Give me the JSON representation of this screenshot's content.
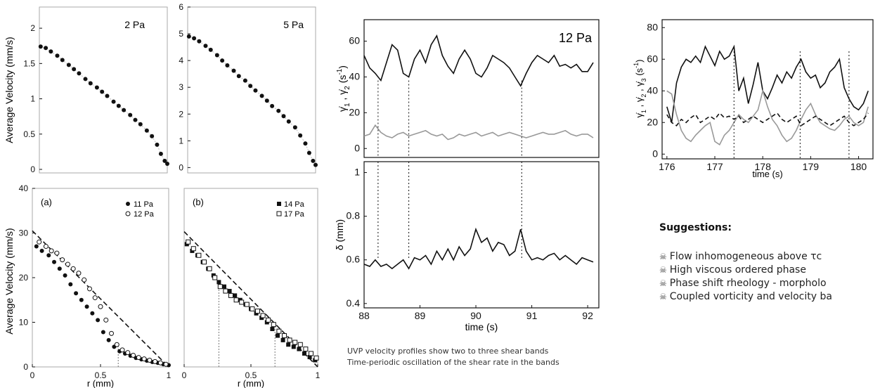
{
  "panels": {
    "p2": {
      "label": "2 Pa"
    },
    "p5": {
      "label": "5 Pa"
    },
    "pa": {
      "label": "(a)",
      "legend": [
        "11 Pa",
        "12 Pa"
      ]
    },
    "pb": {
      "label": "(b)",
      "legend": [
        "14 Pa",
        "17 Pa"
      ]
    },
    "p12": {
      "label": "12 Pa"
    }
  },
  "axes": {
    "avg_velocity_top": "Average Velocity (mm/s)",
    "avg_velocity_bottom": "Average Velocity (mm/s)",
    "r_a": "r (mm)",
    "r_b": "r (mm)",
    "delta": "δ (mm)",
    "time_mid": "time (s)",
    "time_right": "time (s)"
  },
  "caption": {
    "line1": "UVP velocity profiles show two to three shear bands",
    "line2": "Time-periodic oscillation of the shear rate in the bands"
  },
  "suggestions": {
    "title": "Suggestions:",
    "items": [
      "Flow inhomogeneous above τc",
      "High viscous ordered phase",
      "Phase shift rheology - morpholo",
      "Coupled vorticity and velocity ba"
    ],
    "icon": "skull-icon"
  },
  "chart_data": [
    {
      "type": "scatter",
      "label": "2 Pa",
      "ylabel": "Average Velocity (mm/s)",
      "ylim": [
        -0.05,
        2.3
      ],
      "yticks": [
        0,
        0.5,
        1,
        1.5,
        2
      ],
      "points": [
        [
          0.01,
          1.74
        ],
        [
          0.05,
          1.72
        ],
        [
          0.09,
          1.67
        ],
        [
          0.14,
          1.61
        ],
        [
          0.18,
          1.55
        ],
        [
          0.23,
          1.48
        ],
        [
          0.27,
          1.42
        ],
        [
          0.31,
          1.36
        ],
        [
          0.36,
          1.28
        ],
        [
          0.4,
          1.22
        ],
        [
          0.45,
          1.16
        ],
        [
          0.49,
          1.1
        ],
        [
          0.53,
          1.04
        ],
        [
          0.58,
          0.96
        ],
        [
          0.62,
          0.9
        ],
        [
          0.66,
          0.84
        ],
        [
          0.71,
          0.77
        ],
        [
          0.75,
          0.7
        ],
        [
          0.79,
          0.64
        ],
        [
          0.84,
          0.55
        ],
        [
          0.88,
          0.47
        ],
        [
          0.92,
          0.35
        ],
        [
          0.95,
          0.22
        ],
        [
          0.98,
          0.12
        ],
        [
          1.0,
          0.08
        ]
      ]
    },
    {
      "type": "scatter",
      "label": "5 Pa",
      "ylim": [
        -0.2,
        6
      ],
      "yticks": [
        0,
        1,
        2,
        3,
        4,
        5,
        6
      ],
      "points": [
        [
          0.01,
          4.9
        ],
        [
          0.05,
          4.83
        ],
        [
          0.09,
          4.72
        ],
        [
          0.14,
          4.55
        ],
        [
          0.18,
          4.4
        ],
        [
          0.23,
          4.2
        ],
        [
          0.27,
          4.0
        ],
        [
          0.31,
          3.82
        ],
        [
          0.36,
          3.62
        ],
        [
          0.4,
          3.42
        ],
        [
          0.45,
          3.25
        ],
        [
          0.49,
          3.05
        ],
        [
          0.53,
          2.88
        ],
        [
          0.58,
          2.68
        ],
        [
          0.62,
          2.5
        ],
        [
          0.66,
          2.3
        ],
        [
          0.71,
          2.12
        ],
        [
          0.75,
          1.92
        ],
        [
          0.79,
          1.72
        ],
        [
          0.84,
          1.5
        ],
        [
          0.88,
          1.2
        ],
        [
          0.92,
          0.9
        ],
        [
          0.95,
          0.55
        ],
        [
          0.98,
          0.25
        ],
        [
          1.0,
          0.1
        ]
      ]
    },
    {
      "type": "scatter",
      "label": "(a)",
      "xlabel": "r (mm)",
      "ylabel": "Average Velocity (mm/s)",
      "xlim": [
        0,
        1
      ],
      "ylim": [
        0,
        40
      ],
      "yticks": [
        0,
        10,
        20,
        30,
        40
      ],
      "xticks": [
        0,
        0.5,
        1
      ],
      "reference_line": [
        [
          0,
          30.5
        ],
        [
          1,
          0
        ]
      ],
      "marker_line_x": 0.63,
      "series": [
        {
          "name": "11 Pa",
          "marker": "filled-circle",
          "points": [
            [
              0.03,
              27
            ],
            [
              0.07,
              26
            ],
            [
              0.12,
              25
            ],
            [
              0.16,
              23.5
            ],
            [
              0.2,
              22
            ],
            [
              0.24,
              20.5
            ],
            [
              0.28,
              18.5
            ],
            [
              0.32,
              16.5
            ],
            [
              0.36,
              15
            ],
            [
              0.4,
              13.5
            ],
            [
              0.44,
              12
            ],
            [
              0.48,
              10.5
            ],
            [
              0.52,
              7.8
            ],
            [
              0.56,
              6
            ],
            [
              0.6,
              4.5
            ],
            [
              0.64,
              3.5
            ],
            [
              0.68,
              3
            ],
            [
              0.72,
              2.5
            ],
            [
              0.76,
              2
            ],
            [
              0.8,
              1.7
            ],
            [
              0.84,
              1.4
            ],
            [
              0.88,
              1.1
            ],
            [
              0.92,
              0.9
            ],
            [
              0.96,
              0.6
            ],
            [
              1.0,
              0.4
            ]
          ]
        },
        {
          "name": "12 Pa",
          "marker": "open-circle",
          "points": [
            [
              0.05,
              28
            ],
            [
              0.1,
              27
            ],
            [
              0.14,
              26
            ],
            [
              0.18,
              25.5
            ],
            [
              0.22,
              24
            ],
            [
              0.26,
              23
            ],
            [
              0.3,
              22
            ],
            [
              0.34,
              21
            ],
            [
              0.38,
              19.5
            ],
            [
              0.42,
              17.5
            ],
            [
              0.46,
              15.5
            ],
            [
              0.5,
              13.5
            ],
            [
              0.54,
              10.5
            ],
            [
              0.58,
              7.5
            ],
            [
              0.62,
              5
            ],
            [
              0.66,
              3.8
            ],
            [
              0.7,
              3.2
            ],
            [
              0.74,
              2.6
            ],
            [
              0.78,
              2.1
            ],
            [
              0.82,
              1.8
            ],
            [
              0.86,
              1.5
            ],
            [
              0.9,
              1.2
            ],
            [
              0.94,
              0.9
            ],
            [
              0.98,
              0.6
            ]
          ]
        }
      ]
    },
    {
      "type": "scatter",
      "label": "(b)",
      "xlabel": "r (mm)",
      "xlim": [
        0,
        1
      ],
      "ylim": [
        0,
        40
      ],
      "xticks": [
        0,
        0.5,
        1
      ],
      "reference_line": [
        [
          0,
          30.3
        ],
        [
          1,
          0
        ]
      ],
      "marker_line_x": [
        0.26,
        0.68
      ],
      "series": [
        {
          "name": "14 Pa",
          "marker": "filled-square",
          "points": [
            [
              0.02,
              27.5
            ],
            [
              0.06,
              26
            ],
            [
              0.1,
              25
            ],
            [
              0.14,
              23.5
            ],
            [
              0.18,
              22
            ],
            [
              0.22,
              20.5
            ],
            [
              0.26,
              19
            ],
            [
              0.3,
              18
            ],
            [
              0.34,
              17
            ],
            [
              0.38,
              16
            ],
            [
              0.42,
              15
            ],
            [
              0.46,
              14
            ],
            [
              0.5,
              13
            ],
            [
              0.54,
              12
            ],
            [
              0.58,
              11
            ],
            [
              0.62,
              10
            ],
            [
              0.66,
              8.5
            ],
            [
              0.7,
              7
            ],
            [
              0.74,
              6
            ],
            [
              0.78,
              5
            ],
            [
              0.82,
              4.5
            ],
            [
              0.86,
              4
            ],
            [
              0.9,
              3
            ],
            [
              0.94,
              2.2
            ],
            [
              0.98,
              1.5
            ]
          ]
        },
        {
          "name": "17 Pa",
          "marker": "open-square",
          "points": [
            [
              0.03,
              28
            ],
            [
              0.07,
              26.5
            ],
            [
              0.11,
              25
            ],
            [
              0.15,
              23.5
            ],
            [
              0.19,
              22
            ],
            [
              0.23,
              20
            ],
            [
              0.27,
              18
            ],
            [
              0.31,
              17
            ],
            [
              0.35,
              16
            ],
            [
              0.39,
              15
            ],
            [
              0.43,
              14.5
            ],
            [
              0.47,
              14
            ],
            [
              0.51,
              13
            ],
            [
              0.55,
              12.5
            ],
            [
              0.59,
              11.5
            ],
            [
              0.63,
              10.5
            ],
            [
              0.67,
              9.5
            ],
            [
              0.71,
              8
            ],
            [
              0.75,
              7
            ],
            [
              0.79,
              6
            ],
            [
              0.83,
              5.5
            ],
            [
              0.87,
              5
            ],
            [
              0.91,
              4
            ],
            [
              0.95,
              3
            ],
            [
              0.99,
              2
            ]
          ]
        }
      ]
    },
    {
      "type": "line",
      "label": "12 Pa",
      "xlim": [
        88,
        92.2
      ],
      "ylim": [
        -5,
        72
      ],
      "yticks": [
        0,
        20,
        40,
        60
      ],
      "x": [
        88,
        88.1,
        88.2,
        88.3,
        88.4,
        88.5,
        88.6,
        88.7,
        88.8,
        88.9,
        89,
        89.1,
        89.2,
        89.3,
        89.4,
        89.5,
        89.6,
        89.7,
        89.8,
        89.9,
        90,
        90.1,
        90.2,
        90.3,
        90.4,
        90.5,
        90.6,
        90.7,
        90.8,
        90.9,
        91,
        91.1,
        91.2,
        91.3,
        91.4,
        91.5,
        91.6,
        91.7,
        91.8,
        91.9,
        92,
        92.1
      ],
      "series": [
        {
          "name": "",
          "color": "#111111",
          "values": [
            52,
            45,
            42,
            38,
            48,
            58,
            55,
            42,
            40,
            50,
            55,
            48,
            58,
            63,
            52,
            46,
            42,
            50,
            55,
            50,
            42,
            40,
            45,
            52,
            50,
            48,
            45,
            40,
            35,
            42,
            48,
            52,
            50,
            48,
            52,
            46,
            47,
            45,
            47,
            43,
            43,
            48
          ]
        },
        {
          "name": "",
          "color": "#999999",
          "values": [
            7,
            8,
            13,
            9,
            7,
            6,
            8,
            9,
            7,
            8,
            9,
            10,
            8,
            7,
            8,
            5,
            6,
            8,
            7,
            8,
            9,
            7,
            8,
            9,
            7,
            8,
            9,
            8,
            7,
            6,
            7,
            8,
            9,
            8,
            8,
            9,
            10,
            8,
            7,
            8,
            8,
            6
          ]
        }
      ],
      "markers_x": [
        88.25,
        88.8,
        90.82
      ]
    },
    {
      "type": "line",
      "xlabel": "time (s)",
      "ylabel": "δ (mm)",
      "xlim": [
        88,
        92.2
      ],
      "ylim": [
        0.38,
        1.05
      ],
      "yticks": [
        0.4,
        0.6,
        0.8,
        1.0
      ],
      "xticks": [
        88,
        89,
        90,
        91,
        92
      ],
      "x": [
        88,
        88.1,
        88.2,
        88.3,
        88.4,
        88.5,
        88.6,
        88.7,
        88.8,
        88.9,
        89,
        89.1,
        89.2,
        89.3,
        89.4,
        89.5,
        89.6,
        89.7,
        89.8,
        89.9,
        90,
        90.1,
        90.2,
        90.3,
        90.4,
        90.5,
        90.6,
        90.7,
        90.8,
        90.9,
        91,
        91.1,
        91.2,
        91.3,
        91.4,
        91.5,
        91.6,
        91.7,
        91.8,
        91.9,
        92,
        92.1
      ],
      "series": [
        {
          "name": "",
          "color": "#111111",
          "values": [
            0.58,
            0.57,
            0.6,
            0.57,
            0.58,
            0.56,
            0.58,
            0.6,
            0.56,
            0.61,
            0.6,
            0.62,
            0.58,
            0.64,
            0.6,
            0.65,
            0.6,
            0.66,
            0.62,
            0.65,
            0.74,
            0.68,
            0.7,
            0.64,
            0.68,
            0.67,
            0.62,
            0.64,
            0.74,
            0.64,
            0.6,
            0.61,
            0.6,
            0.62,
            0.63,
            0.6,
            0.62,
            0.6,
            0.58,
            0.61,
            0.6,
            0.59
          ]
        }
      ]
    },
    {
      "type": "line",
      "xlabel": "time (s)",
      "xlim": [
        175.9,
        180.3
      ],
      "ylim": [
        -3,
        85
      ],
      "yticks": [
        0,
        20,
        40,
        60,
        80
      ],
      "xticks": [
        176,
        177,
        178,
        179,
        180
      ],
      "x": [
        176,
        176.1,
        176.2,
        176.3,
        176.4,
        176.5,
        176.6,
        176.7,
        176.8,
        176.9,
        177,
        177.1,
        177.2,
        177.3,
        177.4,
        177.5,
        177.6,
        177.7,
        177.8,
        177.9,
        178,
        178.1,
        178.2,
        178.3,
        178.4,
        178.5,
        178.6,
        178.7,
        178.8,
        178.9,
        179,
        179.1,
        179.2,
        179.3,
        179.4,
        179.5,
        179.6,
        179.7,
        179.8,
        179.9,
        180,
        180.1,
        180.2
      ],
      "series": [
        {
          "name": "",
          "color": "#111111",
          "dash": false,
          "values": [
            30,
            20,
            45,
            55,
            60,
            58,
            62,
            58,
            68,
            62,
            56,
            65,
            60,
            62,
            68,
            40,
            48,
            32,
            44,
            58,
            40,
            35,
            42,
            50,
            45,
            52,
            48,
            55,
            60,
            52,
            48,
            50,
            42,
            45,
            52,
            55,
            60,
            42,
            35,
            30,
            28,
            32,
            40
          ]
        },
        {
          "name": "",
          "color": "#999999",
          "dash": false,
          "values": [
            40,
            38,
            25,
            15,
            10,
            8,
            12,
            15,
            18,
            20,
            8,
            6,
            12,
            15,
            20,
            25,
            22,
            20,
            24,
            28,
            40,
            30,
            22,
            18,
            12,
            8,
            10,
            15,
            22,
            28,
            32,
            25,
            20,
            18,
            16,
            15,
            18,
            22,
            24,
            20,
            18,
            20,
            30
          ]
        },
        {
          "name": "",
          "color": "#111111",
          "dash": true,
          "values": [
            25,
            20,
            18,
            22,
            20,
            23,
            25,
            20,
            22,
            24,
            22,
            26,
            23,
            24,
            22,
            24,
            20,
            22,
            24,
            22,
            20,
            22,
            24,
            26,
            22,
            20,
            22,
            24,
            18,
            20,
            22,
            24,
            22,
            20,
            18,
            20,
            22,
            24,
            20,
            18,
            20,
            22,
            26
          ]
        }
      ],
      "markers_x": [
        177.4,
        178.78,
        179.8
      ]
    }
  ]
}
